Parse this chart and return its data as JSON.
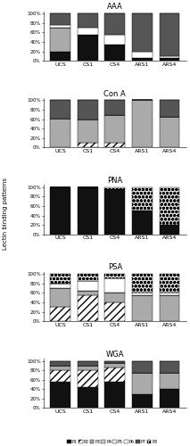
{
  "categories": [
    "UCS",
    "CS1",
    "CS4",
    "ARS1",
    "ARS4"
  ],
  "lectins": [
    "AAA",
    "Con A",
    "PNA",
    "PSA",
    "WGA"
  ],
  "patterns_legend": [
    "P1",
    "P2",
    "P3",
    "P4",
    "P5",
    "P6",
    "P7",
    "P8"
  ],
  "AAA": {
    "P1": [
      20,
      55,
      35,
      5,
      5
    ],
    "P2": [
      0,
      0,
      0,
      0,
      0
    ],
    "P3": [
      50,
      0,
      0,
      0,
      0
    ],
    "P4": [
      0,
      0,
      0,
      0,
      0
    ],
    "P5": [
      0,
      0,
      0,
      0,
      0
    ],
    "P6": [
      5,
      15,
      20,
      15,
      5
    ],
    "P7": [
      25,
      30,
      45,
      80,
      90
    ],
    "P8": [
      0,
      0,
      0,
      0,
      0
    ]
  },
  "Con A": {
    "P1": [
      0,
      0,
      0,
      0,
      0
    ],
    "P2": [
      0,
      10,
      10,
      0,
      0
    ],
    "P3": [
      62,
      50,
      58,
      100,
      65
    ],
    "P4": [
      0,
      0,
      0,
      0,
      0
    ],
    "P5": [
      0,
      0,
      0,
      0,
      0
    ],
    "P6": [
      0,
      0,
      0,
      0,
      0
    ],
    "P7": [
      38,
      40,
      32,
      0,
      35
    ],
    "P8": [
      0,
      0,
      0,
      0,
      0
    ]
  },
  "PNA": {
    "P1": [
      100,
      100,
      95,
      50,
      20
    ],
    "P2": [
      0,
      0,
      0,
      0,
      0
    ],
    "P3": [
      0,
      0,
      0,
      0,
      0
    ],
    "P4": [
      0,
      0,
      0,
      0,
      0
    ],
    "P5": [
      0,
      0,
      0,
      0,
      0
    ],
    "P6": [
      0,
      0,
      0,
      0,
      0
    ],
    "P7": [
      0,
      0,
      0,
      0,
      0
    ],
    "P8": [
      0,
      0,
      5,
      50,
      80
    ]
  },
  "PSA": {
    "P1": [
      0,
      0,
      0,
      0,
      0
    ],
    "P2": [
      30,
      55,
      40,
      0,
      0
    ],
    "P3": [
      40,
      10,
      20,
      55,
      55
    ],
    "P4": [
      0,
      0,
      0,
      0,
      0
    ],
    "P5": [
      0,
      0,
      0,
      0,
      0
    ],
    "P6": [
      10,
      20,
      30,
      5,
      5
    ],
    "P7": [
      0,
      0,
      0,
      0,
      0
    ],
    "P8": [
      20,
      15,
      10,
      40,
      40
    ]
  },
  "WGA": {
    "P1": [
      55,
      45,
      55,
      30,
      40
    ],
    "P2": [
      25,
      35,
      30,
      0,
      0
    ],
    "P3": [
      10,
      10,
      10,
      45,
      35
    ],
    "P4": [
      0,
      0,
      0,
      0,
      0
    ],
    "P5": [
      0,
      0,
      0,
      0,
      0
    ],
    "P6": [
      0,
      0,
      0,
      0,
      0
    ],
    "P7": [
      10,
      10,
      5,
      25,
      25
    ],
    "P8": [
      0,
      0,
      0,
      0,
      0
    ]
  },
  "pattern_styles": {
    "P1": {
      "color": "#111111",
      "hatch": ""
    },
    "P2": {
      "color": "#ffffff",
      "hatch": "////"
    },
    "P3": {
      "color": "#aaaaaa",
      "hatch": ""
    },
    "P4": {
      "color": "#cccccc",
      "hatch": ""
    },
    "P5": {
      "color": "#eeeeee",
      "hatch": ""
    },
    "P6": {
      "color": "#ffffff",
      "hatch": ""
    },
    "P7": {
      "color": "#555555",
      "hatch": ""
    },
    "P8": {
      "color": "#dddddd",
      "hatch": "oooo"
    }
  },
  "bar_width": 0.75,
  "ylim": [
    0,
    105
  ],
  "yticks": [
    0,
    20,
    40,
    60,
    80,
    100
  ],
  "yticklabels": [
    "0%",
    "20%",
    "40%",
    "60%",
    "80%",
    "100%"
  ],
  "title_fontsize": 6,
  "tick_fontsize": 4,
  "xtick_fontsize": 4.5,
  "ylabel": "Lectin binding patterns",
  "ylabel_fontsize": 5
}
